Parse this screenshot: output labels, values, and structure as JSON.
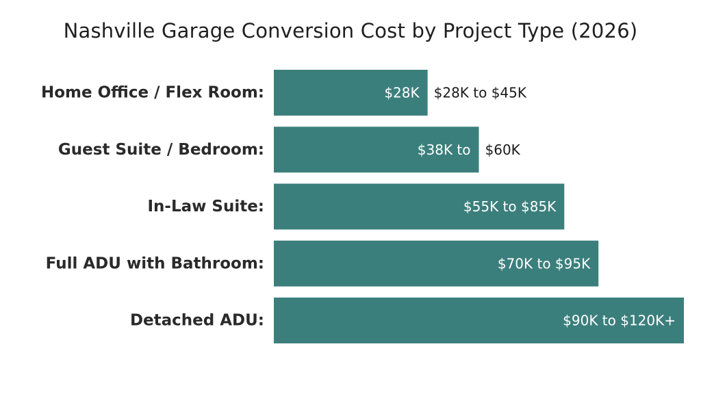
{
  "chart_data": {
    "type": "bar",
    "orientation": "horizontal",
    "title": "Nashville Garage Conversion Cost by Project Type (2026)",
    "categories": [
      "Home Office / Flex Room:",
      "Guest Suite / Bedroom:",
      "In-Law Suite:",
      "Full ADU with Bathroom:",
      "Detached ADU:"
    ],
    "ranges": [
      {
        "low": 28,
        "high": 45,
        "unit": "$K"
      },
      {
        "low": 38,
        "high": 60,
        "unit": "$K"
      },
      {
        "low": 55,
        "high": 85,
        "unit": "$K"
      },
      {
        "low": 70,
        "high": 95,
        "unit": "$K"
      },
      {
        "low": 90,
        "high": 120,
        "unit": "$K"
      }
    ],
    "values": [
      45,
      60,
      85,
      95,
      120
    ],
    "value_labels": [
      {
        "inside": "$28K",
        "outside": "$28K to $45K"
      },
      {
        "inside": "$38K to",
        "outside": "$60K"
      },
      {
        "inside": "$55K to $85K",
        "outside": ""
      },
      {
        "inside": "$70K to $95K",
        "outside": ""
      },
      {
        "inside": "$90K to $120K+",
        "outside": ""
      }
    ],
    "xlim": [
      0,
      120
    ],
    "grid": false,
    "legend": "none",
    "bar_color": "#3b7f7c"
  }
}
